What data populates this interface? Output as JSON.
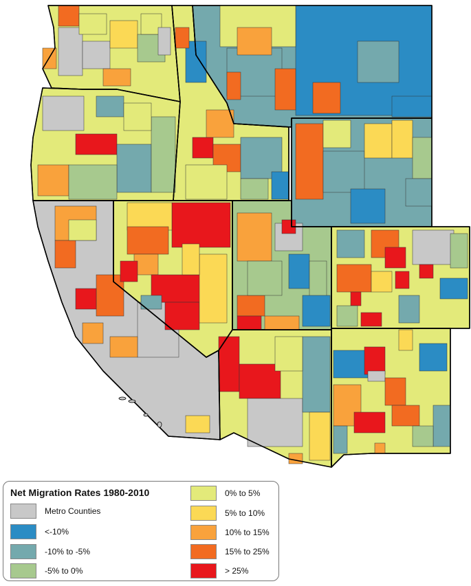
{
  "legend": {
    "title": "Net Migration Rates 1980-2010",
    "items": [
      {
        "key": "metro",
        "label": "Metro Counties",
        "color": "#c8c8c8"
      },
      {
        "key": "lt-10",
        "label": "<-10%",
        "color": "#2b8cc4"
      },
      {
        "key": "m10-m5",
        "label": "-10% to -5%",
        "color": "#74a9ad"
      },
      {
        "key": "m5-0",
        "label": "-5% to 0%",
        "color": "#a7c98e"
      },
      {
        "key": "0-5",
        "label": "0% to 5%",
        "color": "#e3ea7a"
      },
      {
        "key": "5-10",
        "label": "5% to 10%",
        "color": "#fbd955"
      },
      {
        "key": "10-15",
        "label": "10% to 15%",
        "color": "#f9a23c"
      },
      {
        "key": "15-25",
        "label": "15% to 25%",
        "color": "#f26b21"
      },
      {
        "key": "gt25",
        "label": "> 25%",
        "color": "#e8171c"
      }
    ]
  }
}
